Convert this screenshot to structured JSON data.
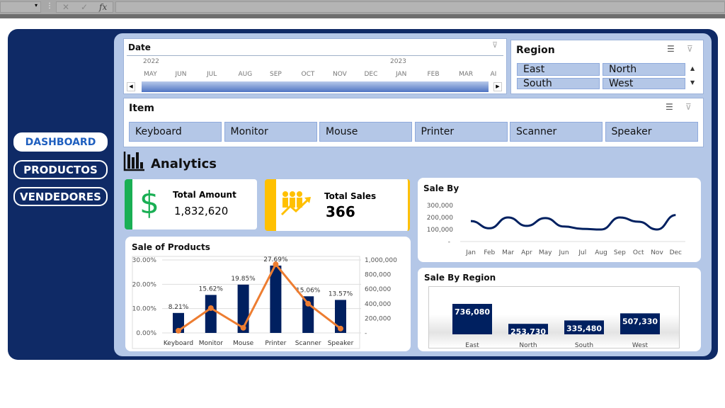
{
  "toolbar": {
    "cancel_icon": "x-icon",
    "enter_icon": "check-icon",
    "fx_label": "fx"
  },
  "nav": [
    {
      "label": "DASHBOARD",
      "active": true
    },
    {
      "label": "PRODUCTOS"
    },
    {
      "label": "VENDEDORES"
    }
  ],
  "date_slicer": {
    "title": "Date",
    "years": [
      "2022",
      "2023"
    ],
    "months": [
      "MAY",
      "JUN",
      "JUL",
      "AUG",
      "SEP",
      "OCT",
      "NOV",
      "DEC",
      "JAN",
      "FEB",
      "MAR",
      "AI"
    ]
  },
  "region_slicer": {
    "title": "Region",
    "items": [
      "East",
      "North",
      "South",
      "West"
    ]
  },
  "item_slicer": {
    "title": "Item",
    "items": [
      "Keyboard",
      "Monitor",
      "Mouse",
      "Printer",
      "Scanner",
      "Speaker"
    ]
  },
  "analytics": {
    "title": "Analytics"
  },
  "kpis": {
    "total_amount": {
      "label": "Total Amount",
      "value": "1,832,620",
      "color": "#1aaf54"
    },
    "total_sales": {
      "label": "Total Sales",
      "value": "366",
      "color": "#ffc000"
    }
  },
  "colors": {
    "navy": "#0f2a66",
    "bar": "#002060",
    "line": "#ed7d31",
    "panel": "#b4c7e7"
  },
  "chart_data": [
    {
      "type": "bar",
      "title": "Sale of Products",
      "categories": [
        "Keyboard",
        "Monitor",
        "Mouse",
        "Printer",
        "Scanner",
        "Speaker"
      ],
      "series": [
        {
          "axis": "left",
          "type": "bar",
          "values": [
            8.21,
            15.62,
            19.85,
            27.69,
            15.06,
            13.57
          ],
          "labels": [
            "8.21%",
            "15.62%",
            "19.85%",
            "27.69%",
            "15.06%",
            "13.57%"
          ]
        },
        {
          "axis": "right",
          "type": "line",
          "values": [
            30000,
            340000,
            70000,
            940000,
            400000,
            60000
          ]
        }
      ],
      "yticks_left": [
        "0.00%",
        "10.00%",
        "20.00%",
        "30.00%"
      ],
      "ylim_left": [
        0,
        30
      ],
      "yticks_right": [
        "-",
        "200,000",
        "400,000",
        "600,000",
        "800,000",
        "1,000,000"
      ],
      "ylim_right": [
        0,
        1000000
      ],
      "grid": true
    },
    {
      "type": "line",
      "title": "Sale By",
      "categories": [
        "Jan",
        "Feb",
        "Mar",
        "Apr",
        "May",
        "Jun",
        "Jul",
        "Aug",
        "Sep",
        "Oct",
        "Nov",
        "Dec"
      ],
      "values": [
        170000,
        110000,
        200000,
        130000,
        195000,
        125000,
        105000,
        100000,
        200000,
        165000,
        100000,
        220000
      ],
      "yticks": [
        "-",
        "100,000",
        "200,000",
        "300,000"
      ],
      "ylim": [
        0,
        300000
      ]
    },
    {
      "type": "bar",
      "title": "Sale By Region",
      "categories": [
        "East",
        "North",
        "South",
        "West"
      ],
      "values": [
        736080,
        253730,
        335480,
        507330
      ],
      "labels": [
        "736,080",
        "253,730",
        "335,480",
        "507,330"
      ]
    }
  ]
}
